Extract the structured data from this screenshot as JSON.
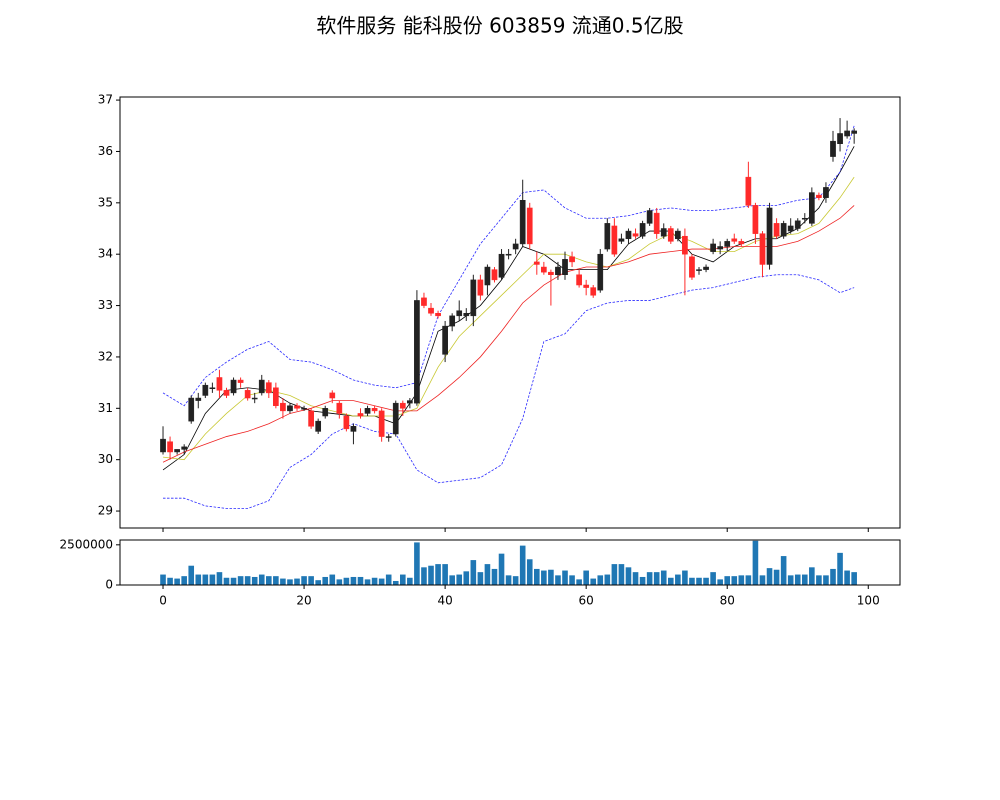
{
  "chart_data": [
    {
      "type": "candlestick",
      "title": "软件服务 能科股份 603859 流通0.5亿股",
      "up_color": "#222222",
      "down_color": "#ff2a2a",
      "open": [
        30.15,
        30.35,
        30.15,
        30.2,
        30.75,
        31.15,
        31.25,
        31.4,
        31.6,
        31.35,
        31.3,
        31.55,
        31.35,
        31.2,
        31.3,
        31.5,
        31.4,
        31.1,
        30.95,
        31.05,
        31.0,
        30.95,
        30.55,
        30.85,
        31.3,
        31.1,
        30.85,
        30.55,
        30.9,
        30.9,
        31.0,
        30.95,
        30.45,
        30.5,
        31.1,
        31.1,
        31.1,
        33.15,
        32.95,
        32.85,
        32.05,
        32.6,
        32.8,
        32.8,
        32.8,
        33.5,
        33.4,
        33.7,
        33.55,
        34.0,
        34.1,
        34.2,
        34.9,
        33.85,
        33.75,
        33.65,
        33.6,
        33.6,
        33.95,
        33.6,
        33.4,
        33.35,
        33.3,
        34.1,
        34.55,
        34.25,
        34.3,
        34.4,
        34.35,
        34.6,
        34.8,
        34.35,
        34.5,
        34.3,
        34.35,
        33.95,
        33.7,
        33.7,
        34.05,
        34.1,
        34.15,
        34.3,
        34.25,
        35.5,
        34.95,
        34.4,
        33.8,
        34.6,
        34.35,
        34.45,
        34.5,
        34.7,
        34.6,
        35.15,
        35.1,
        35.9,
        36.15,
        36.3,
        36.35
      ],
      "high": [
        30.65,
        30.45,
        30.2,
        30.3,
        31.25,
        31.3,
        31.5,
        31.5,
        31.75,
        31.4,
        31.6,
        31.6,
        31.4,
        31.3,
        31.65,
        31.55,
        31.5,
        31.2,
        31.1,
        31.1,
        31.05,
        31.0,
        30.8,
        31.05,
        31.35,
        31.15,
        30.9,
        30.7,
        31.0,
        31.05,
        31.05,
        31.0,
        30.5,
        31.15,
        31.15,
        31.2,
        33.3,
        33.25,
        33.05,
        32.9,
        32.7,
        32.85,
        33.1,
        32.95,
        33.6,
        33.6,
        33.8,
        33.75,
        34.1,
        34.1,
        34.3,
        35.45,
        35.0,
        34.05,
        33.85,
        33.7,
        33.85,
        34.05,
        34.05,
        33.7,
        33.5,
        33.4,
        34.1,
        34.7,
        34.7,
        34.4,
        34.5,
        34.5,
        34.65,
        34.9,
        34.9,
        34.6,
        34.55,
        34.5,
        34.5,
        34.0,
        33.75,
        33.8,
        34.3,
        34.25,
        34.3,
        34.4,
        34.3,
        35.8,
        35.0,
        34.45,
        35.0,
        34.7,
        34.65,
        34.7,
        34.7,
        34.8,
        35.3,
        35.2,
        35.4,
        36.4,
        36.65,
        36.6,
        36.45
      ],
      "low": [
        30.1,
        30.0,
        30.1,
        30.1,
        30.7,
        31.0,
        31.2,
        31.3,
        31.2,
        31.2,
        31.25,
        31.4,
        31.15,
        31.1,
        31.25,
        31.2,
        31.0,
        30.8,
        30.9,
        30.95,
        30.95,
        30.6,
        30.5,
        30.8,
        31.1,
        30.8,
        30.55,
        30.3,
        30.8,
        30.85,
        30.9,
        30.35,
        30.35,
        30.45,
        30.85,
        31.0,
        31.05,
        32.95,
        32.8,
        32.75,
        31.9,
        32.5,
        32.7,
        32.7,
        32.6,
        33.1,
        33.2,
        33.45,
        33.5,
        33.9,
        34.0,
        34.15,
        34.1,
        33.6,
        33.6,
        33.0,
        33.5,
        33.5,
        33.75,
        33.35,
        33.2,
        33.15,
        33.25,
        34.05,
        33.95,
        34.2,
        34.2,
        34.3,
        34.3,
        34.55,
        34.3,
        34.3,
        34.2,
        34.25,
        33.2,
        33.5,
        33.6,
        33.65,
        34.0,
        34.0,
        34.05,
        34.2,
        34.15,
        34.9,
        34.2,
        33.55,
        33.7,
        34.3,
        34.3,
        34.4,
        34.45,
        34.6,
        34.55,
        35.05,
        35.0,
        35.8,
        36.0,
        36.25,
        36.15
      ],
      "close": [
        30.4,
        30.15,
        30.2,
        30.25,
        31.2,
        31.2,
        31.45,
        31.4,
        31.35,
        31.25,
        31.55,
        31.5,
        31.2,
        31.2,
        31.55,
        31.3,
        31.05,
        30.95,
        31.05,
        31.0,
        31.0,
        30.65,
        30.75,
        31.0,
        31.2,
        30.9,
        30.6,
        30.65,
        30.85,
        31.0,
        30.95,
        30.45,
        30.45,
        31.1,
        31.0,
        31.15,
        33.1,
        33.0,
        32.85,
        32.8,
        32.6,
        32.8,
        32.9,
        32.85,
        33.5,
        33.2,
        33.75,
        33.5,
        34.0,
        34.0,
        34.2,
        35.05,
        34.2,
        33.8,
        33.65,
        33.6,
        33.75,
        33.9,
        33.85,
        33.4,
        33.35,
        33.2,
        34.0,
        34.6,
        34.0,
        34.3,
        34.45,
        34.35,
        34.6,
        34.85,
        34.4,
        34.5,
        34.25,
        34.45,
        34.0,
        33.55,
        33.7,
        33.75,
        34.2,
        34.15,
        34.25,
        34.25,
        34.2,
        34.95,
        34.4,
        33.8,
        34.9,
        34.35,
        34.6,
        34.55,
        34.65,
        34.7,
        35.2,
        35.1,
        35.3,
        36.2,
        36.35,
        36.4,
        36.4
      ],
      "lines": [
        {
          "color": "#000000",
          "style": "solid",
          "x": [
            0,
            3,
            6,
            9,
            12,
            15,
            18,
            21,
            24,
            27,
            30,
            33,
            36,
            39,
            42,
            45,
            48,
            51,
            54,
            57,
            60,
            63,
            66,
            69,
            72,
            75,
            78,
            81,
            84,
            87,
            90,
            93,
            96,
            98
          ],
          "values": [
            29.8,
            30.1,
            30.9,
            31.35,
            31.4,
            31.35,
            31.1,
            30.95,
            30.9,
            30.85,
            30.85,
            30.7,
            31.3,
            32.5,
            32.7,
            33.0,
            33.5,
            34.15,
            34.0,
            33.7,
            33.7,
            33.7,
            34.2,
            34.45,
            34.45,
            34.0,
            33.85,
            34.15,
            34.3,
            34.3,
            34.5,
            34.9,
            35.6,
            36.1
          ]
        },
        {
          "color": "#c8c832",
          "style": "solid",
          "x": [
            0,
            3,
            6,
            9,
            12,
            15,
            18,
            21,
            24,
            27,
            30,
            33,
            36,
            39,
            42,
            45,
            48,
            51,
            54,
            57,
            60,
            63,
            66,
            69,
            72,
            75,
            78,
            81,
            84,
            87,
            90,
            93,
            96,
            98
          ],
          "values": [
            30.05,
            30.0,
            30.5,
            30.9,
            31.25,
            31.35,
            31.25,
            31.05,
            30.95,
            30.85,
            30.85,
            30.85,
            31.0,
            31.8,
            32.4,
            32.8,
            33.2,
            33.6,
            34.0,
            34.0,
            33.85,
            33.75,
            33.9,
            34.2,
            34.4,
            34.25,
            34.05,
            34.05,
            34.25,
            34.35,
            34.4,
            34.6,
            35.1,
            35.5
          ]
        },
        {
          "color": "#ee2222",
          "style": "solid",
          "x": [
            0,
            3,
            6,
            9,
            12,
            15,
            18,
            21,
            24,
            27,
            30,
            33,
            36,
            39,
            42,
            45,
            48,
            51,
            54,
            57,
            60,
            63,
            66,
            69,
            72,
            75,
            78,
            81,
            84,
            87,
            90,
            93,
            96,
            98
          ],
          "values": [
            29.95,
            30.15,
            30.3,
            30.45,
            30.55,
            30.7,
            30.9,
            31.0,
            31.15,
            31.15,
            31.05,
            30.95,
            30.95,
            31.25,
            31.6,
            32.0,
            32.5,
            33.05,
            33.4,
            33.65,
            33.75,
            33.75,
            33.85,
            34.0,
            34.05,
            34.1,
            34.1,
            34.15,
            34.15,
            34.15,
            34.25,
            34.45,
            34.7,
            34.95
          ]
        },
        {
          "color": "#2a2aff",
          "style": "dashed",
          "x": [
            0,
            3,
            6,
            9,
            12,
            15,
            18,
            21,
            24,
            27,
            30,
            33,
            36,
            39,
            42,
            45,
            48,
            51,
            54,
            57,
            60,
            63,
            66,
            69,
            72,
            75,
            78,
            81,
            84,
            87,
            90,
            93,
            96,
            98
          ],
          "values": [
            31.3,
            31.05,
            31.6,
            31.9,
            32.15,
            32.3,
            31.95,
            31.9,
            31.75,
            31.55,
            31.45,
            31.4,
            31.5,
            32.8,
            33.5,
            34.2,
            34.7,
            35.2,
            35.25,
            34.9,
            34.7,
            34.7,
            34.75,
            34.85,
            34.9,
            34.85,
            34.85,
            34.9,
            34.95,
            34.95,
            35.05,
            35.1,
            35.6,
            36.5
          ]
        },
        {
          "color": "#2a2aff",
          "style": "dashed",
          "x": [
            0,
            3,
            6,
            9,
            12,
            15,
            18,
            21,
            24,
            27,
            30,
            33,
            36,
            39,
            42,
            45,
            48,
            51,
            54,
            57,
            60,
            63,
            66,
            69,
            72,
            75,
            78,
            81,
            84,
            87,
            90,
            93,
            96,
            98
          ],
          "values": [
            29.25,
            29.25,
            29.1,
            29.05,
            29.05,
            29.2,
            29.85,
            30.1,
            30.5,
            30.7,
            30.55,
            30.5,
            29.8,
            29.55,
            29.6,
            29.65,
            29.9,
            30.8,
            32.3,
            32.45,
            32.9,
            33.05,
            33.1,
            33.1,
            33.2,
            33.3,
            33.35,
            33.45,
            33.55,
            33.6,
            33.6,
            33.5,
            33.25,
            33.35
          ]
        }
      ],
      "xlim": [
        -6.1,
        104.5
      ],
      "xticks": [
        0,
        20,
        40,
        60,
        80,
        100
      ],
      "ylim": [
        28.67,
        37.06
      ],
      "yticks": [
        29,
        30,
        31,
        32,
        33,
        34,
        35,
        36,
        37
      ]
    },
    {
      "type": "bar",
      "color": "#1f77b4",
      "values": [
        650000,
        450000,
        400000,
        550000,
        1200000,
        650000,
        650000,
        650000,
        800000,
        450000,
        450000,
        550000,
        550000,
        500000,
        650000,
        550000,
        550000,
        400000,
        350000,
        400000,
        550000,
        550000,
        300000,
        500000,
        650000,
        350000,
        450000,
        500000,
        500000,
        350000,
        450000,
        400000,
        650000,
        250000,
        650000,
        450000,
        2650000,
        1100000,
        1200000,
        1300000,
        1300000,
        600000,
        650000,
        850000,
        1550000,
        800000,
        1300000,
        1000000,
        1950000,
        600000,
        550000,
        2450000,
        1600000,
        1000000,
        900000,
        950000,
        600000,
        900000,
        600000,
        350000,
        900000,
        400000,
        600000,
        650000,
        1300000,
        1300000,
        1100000,
        800000,
        500000,
        800000,
        800000,
        900000,
        450000,
        650000,
        900000,
        450000,
        450000,
        450000,
        800000,
        350000,
        550000,
        550000,
        600000,
        600000,
        2750000,
        600000,
        1050000,
        950000,
        1800000,
        600000,
        650000,
        650000,
        1100000,
        600000,
        600000,
        1000000,
        2000000,
        900000,
        800000
      ],
      "xlim": [
        -6.1,
        104.5
      ],
      "xticks": [
        0,
        20,
        40,
        60,
        80,
        100
      ],
      "ylim": [
        0,
        2800000
      ],
      "yticks": [
        0,
        2500000
      ]
    }
  ]
}
